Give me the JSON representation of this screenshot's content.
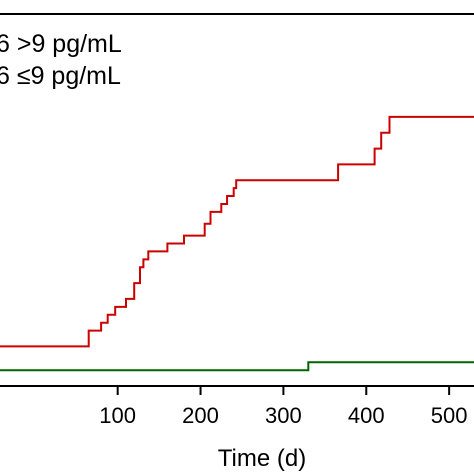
{
  "chart_data": {
    "type": "line",
    "xlabel": "Time (d)",
    "ylabel": "",
    "xlim": [
      -42,
      530
    ],
    "ylim": [
      -0.02,
      0.45
    ],
    "x_ticks": [
      100,
      200,
      300,
      400,
      500
    ],
    "x_tick_labels": [
      "100",
      "200",
      "300",
      "400",
      "500"
    ],
    "grid": false,
    "legend_placement": "top-left",
    "legend": [
      {
        "text": "6 >9 pg/mL",
        "color": "#cc0000"
      },
      {
        "text": "6 ≤9 pg/mL",
        "color": "#006400"
      }
    ],
    "series": [
      {
        "color": "#cc0000",
        "step": true,
        "x": [
          -42,
          65,
          80,
          88,
          97,
          110,
          120,
          127,
          131,
          137,
          160,
          180,
          205,
          212,
          225,
          232,
          240,
          243,
          366,
          410,
          418,
          428,
          530
        ],
        "y": [
          0.03,
          0.05,
          0.06,
          0.07,
          0.08,
          0.09,
          0.11,
          0.13,
          0.14,
          0.15,
          0.16,
          0.17,
          0.185,
          0.2,
          0.21,
          0.22,
          0.23,
          0.24,
          0.26,
          0.28,
          0.3,
          0.32,
          0.32
        ]
      },
      {
        "color": "#006400",
        "step": true,
        "x": [
          -42,
          330,
          530
        ],
        "y": [
          0.0,
          0.01,
          0.01
        ]
      }
    ]
  }
}
